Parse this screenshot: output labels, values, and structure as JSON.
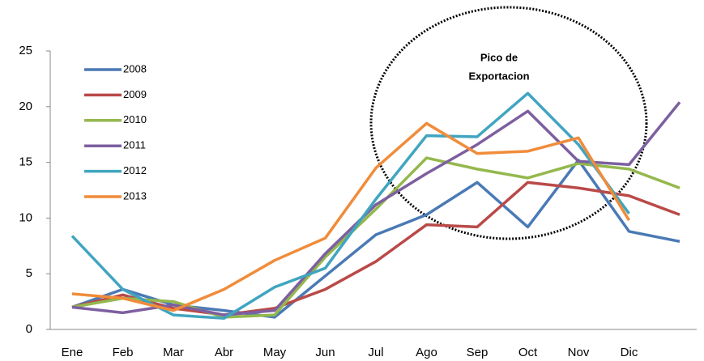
{
  "chart_data": {
    "type": "line",
    "annotation": [
      "Pico de",
      "Exportacion"
    ],
    "categories": [
      "Ene",
      "Feb",
      "Mar",
      "Abr",
      "May",
      "Jun",
      "Jul",
      "Ago",
      "Sep",
      "Oct",
      "Nov",
      "Dic",
      null
    ],
    "series": [
      {
        "name": "2008",
        "color": "#4a7ab5",
        "values": [
          2.0,
          3.6,
          2.2,
          1.7,
          1.1,
          4.8,
          8.5,
          10.3,
          13.2,
          9.2,
          15.2,
          8.8,
          7.9
        ]
      },
      {
        "name": "2009",
        "color": "#b94a48",
        "values": [
          2.0,
          3.1,
          1.9,
          1.3,
          1.9,
          3.6,
          6.1,
          9.4,
          9.2,
          13.2,
          12.7,
          12.0,
          10.3
        ]
      },
      {
        "name": "2010",
        "color": "#94b84d",
        "values": [
          2.0,
          2.8,
          2.5,
          1.1,
          1.3,
          6.5,
          10.8,
          15.4,
          14.4,
          13.6,
          14.9,
          14.4,
          12.7
        ]
      },
      {
        "name": "2011",
        "color": "#7d5fa0",
        "values": [
          2.0,
          1.5,
          2.2,
          1.3,
          1.7,
          6.8,
          11.2,
          14.0,
          16.6,
          19.6,
          15.1,
          14.8,
          20.4
        ]
      },
      {
        "name": "2012",
        "color": "#40a5c0",
        "values": [
          8.4,
          3.6,
          1.3,
          1.0,
          3.8,
          5.5,
          11.7,
          17.4,
          17.3,
          21.2,
          16.6,
          10.4,
          null
        ]
      },
      {
        "name": "2013",
        "color": "#f08c3a",
        "values": [
          3.2,
          2.8,
          1.7,
          3.6,
          6.2,
          8.2,
          14.5,
          18.5,
          15.8,
          16.0,
          17.2,
          9.8,
          null
        ]
      }
    ],
    "ylim": [
      0,
      25
    ],
    "yticks": [
      0,
      5,
      10,
      15,
      20,
      25
    ],
    "grid": false
  }
}
